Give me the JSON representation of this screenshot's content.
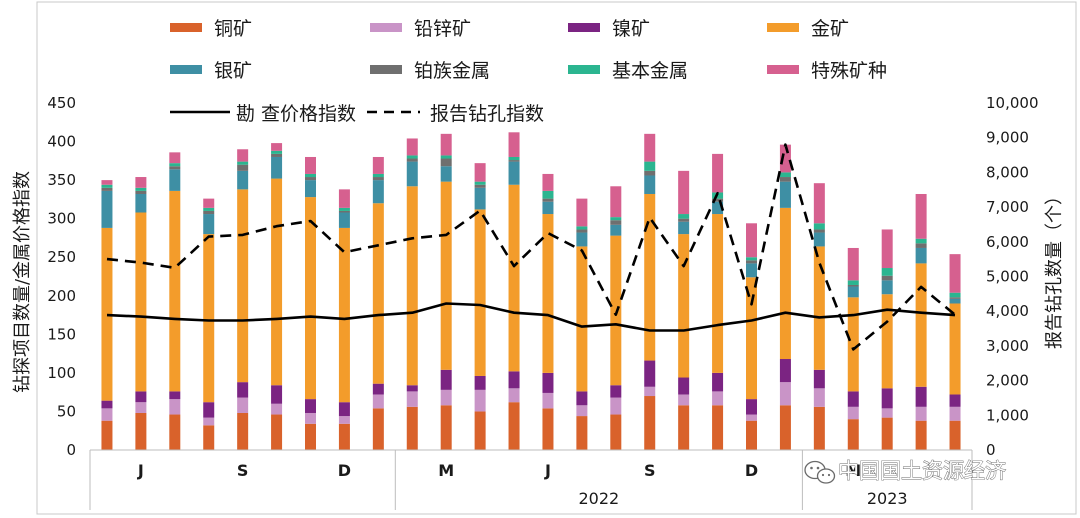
{
  "chart_data": {
    "type": "bar",
    "stacked": true,
    "title": "",
    "y_left_label": "钻探项目数量/金属价格指数",
    "y_right_label": "报告钻孔数量（个）",
    "ylim_left": [
      0,
      450
    ],
    "ylim_right": [
      0,
      10000
    ],
    "y_left_ticks": [
      "0",
      "50",
      "100",
      "150",
      "200",
      "250",
      "300",
      "350",
      "400",
      "450"
    ],
    "y_right_ticks": [
      "0",
      "1,000",
      "2,000",
      "3,000",
      "4,000",
      "5,000",
      "6,000",
      "7,000",
      "8,000",
      "9,000",
      "10,000"
    ],
    "month_labels": [
      {
        "index": 1,
        "label": "J"
      },
      {
        "index": 4,
        "label": "S"
      },
      {
        "index": 7,
        "label": "D"
      },
      {
        "index": 10,
        "label": "M"
      },
      {
        "index": 13,
        "label": "J"
      },
      {
        "index": 16,
        "label": "S"
      },
      {
        "index": 19,
        "label": "D"
      },
      {
        "index": 22,
        "label": "M"
      }
    ],
    "year_groups": [
      {
        "label": "",
        "start": 0,
        "end": 8
      },
      {
        "label": "2022",
        "start": 9,
        "end": 20
      },
      {
        "label": "2023",
        "start": 21,
        "end": 25
      }
    ],
    "series": [
      {
        "name": "铜矿",
        "color": "#d9622b",
        "values": [
          38,
          48,
          46,
          32,
          48,
          46,
          34,
          34,
          54,
          56,
          58,
          50,
          62,
          54,
          44,
          46,
          70,
          58,
          58,
          38,
          58,
          56,
          40,
          42,
          38,
          38
        ]
      },
      {
        "name": "铅锌矿",
        "color": "#c994c7",
        "values": [
          16,
          14,
          20,
          10,
          20,
          14,
          14,
          10,
          18,
          20,
          20,
          28,
          18,
          20,
          14,
          22,
          12,
          14,
          18,
          8,
          30,
          24,
          16,
          12,
          18,
          18
        ]
      },
      {
        "name": "镍矿",
        "color": "#7b2482",
        "values": [
          10,
          14,
          10,
          20,
          20,
          24,
          18,
          18,
          14,
          8,
          26,
          18,
          22,
          26,
          18,
          16,
          34,
          22,
          24,
          20,
          30,
          24,
          20,
          26,
          26,
          16
        ]
      },
      {
        "name": "金矿",
        "color": "#f39c2b",
        "values": [
          224,
          232,
          260,
          218,
          250,
          268,
          262,
          226,
          234,
          258,
          244,
          216,
          242,
          206,
          188,
          194,
          216,
          186,
          206,
          158,
          196,
          160,
          122,
          122,
          160,
          118
        ]
      },
      {
        "name": "银矿",
        "color": "#3e8fa4",
        "values": [
          48,
          24,
          28,
          26,
          24,
          28,
          22,
          20,
          30,
          32,
          20,
          28,
          30,
          16,
          18,
          14,
          24,
          16,
          16,
          18,
          34,
          18,
          14,
          18,
          20,
          6
        ]
      },
      {
        "name": "铂族金属",
        "color": "#6f6f6f",
        "values": [
          4,
          4,
          4,
          4,
          8,
          4,
          4,
          2,
          4,
          4,
          10,
          4,
          2,
          4,
          4,
          6,
          6,
          4,
          4,
          4,
          6,
          4,
          2,
          6,
          6,
          2
        ]
      },
      {
        "name": "基本金属",
        "color": "#2bb590",
        "values": [
          4,
          4,
          4,
          4,
          4,
          4,
          4,
          4,
          4,
          4,
          4,
          4,
          4,
          10,
          4,
          4,
          12,
          6,
          8,
          4,
          6,
          8,
          6,
          10,
          6,
          6
        ]
      },
      {
        "name": "特殊矿种",
        "color": "#d6608f",
        "values": [
          6,
          14,
          14,
          12,
          16,
          10,
          22,
          24,
          22,
          22,
          28,
          24,
          32,
          22,
          36,
          40,
          36,
          56,
          50,
          44,
          36,
          52,
          42,
          50,
          58,
          50
        ]
      }
    ],
    "lines": [
      {
        "name": "勘 查价格指数",
        "style": "solid",
        "axis": "left",
        "values": [
          175,
          173,
          170,
          168,
          168,
          170,
          173,
          170,
          175,
          178,
          190,
          188,
          178,
          175,
          160,
          163,
          155,
          155,
          162,
          168,
          178,
          172,
          175,
          182,
          178,
          175
        ]
      },
      {
        "name": "报告钻孔指数",
        "style": "dashed",
        "axis": "right",
        "values": [
          5500,
          5400,
          5250,
          6150,
          6200,
          6450,
          6600,
          5700,
          5900,
          6100,
          6200,
          6900,
          5300,
          6250,
          5750,
          3900,
          6700,
          5300,
          7400,
          4200,
          8800,
          5400,
          2900,
          3700,
          4700,
          3900
        ]
      }
    ]
  },
  "watermark": {
    "text": "中国国土资源经济"
  }
}
